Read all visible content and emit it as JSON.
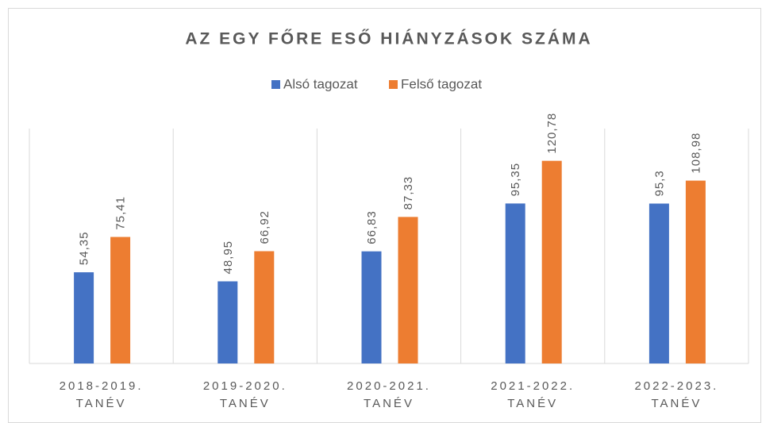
{
  "chart_data": {
    "type": "bar",
    "title": "AZ EGY FŐRE ESŐ HIÁNYZÁSOK SZÁMA",
    "categories": [
      "2018-2019. TANÉV",
      "2019-2020. TANÉV",
      "2020-2021. TANÉV",
      "2021-2022. TANÉV",
      "2022-2023. TANÉV"
    ],
    "series": [
      {
        "name": "Alsó tagozat",
        "color": "#4472c4",
        "values": [
          54.35,
          48.95,
          66.83,
          95.35,
          95.3
        ],
        "value_labels": [
          "54,35",
          "48,95",
          "66,83",
          "95,35",
          "95,3"
        ]
      },
      {
        "name": "Felső tagozat",
        "color": "#ed7d31",
        "values": [
          75.41,
          66.92,
          87.33,
          120.78,
          108.98
        ],
        "value_labels": [
          "75,41",
          "66,92",
          "87,33",
          "120,78",
          "108,98"
        ]
      }
    ],
    "ylim": [
      0,
      140
    ],
    "legend": "top"
  }
}
